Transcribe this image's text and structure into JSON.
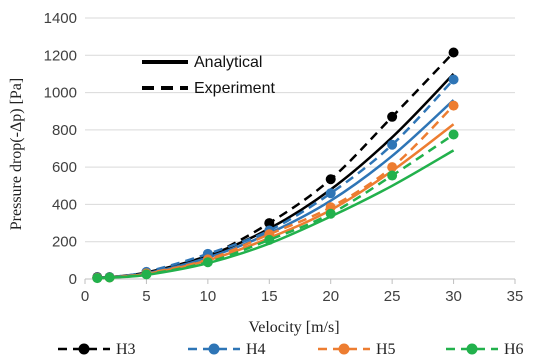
{
  "chart_data": {
    "type": "scatter",
    "xlabel": "Velocity [m/s]",
    "ylabel": "Pressure drop(-Δp) [Pa]",
    "xlim": [
      0,
      35
    ],
    "ylim": [
      0,
      1400
    ],
    "xticks": [
      0,
      5,
      10,
      15,
      20,
      25,
      30,
      35
    ],
    "yticks": [
      0,
      200,
      400,
      600,
      800,
      1000,
      1200,
      1400
    ],
    "grid": "horizontal",
    "style_legend": {
      "placement": "top-left",
      "entries": [
        {
          "label": "Analytical",
          "line": "solid"
        },
        {
          "label": "Experiment",
          "line": "dashed"
        }
      ]
    },
    "series_legend_placement": "bottom",
    "series": [
      {
        "name": "H3",
        "color": "#000000",
        "experiment": {
          "x": [
            1,
            2,
            5,
            10,
            15,
            20,
            25,
            30
          ],
          "y": [
            10,
            10,
            35,
            125,
            300,
            535,
            870,
            1215
          ]
        },
        "analytical": {
          "x": [
            1,
            2,
            5,
            10,
            15,
            20,
            25,
            30
          ],
          "y": [
            5,
            10,
            35,
            125,
            270,
            480,
            760,
            1100
          ]
        }
      },
      {
        "name": "H4",
        "color": "#2E75B6",
        "experiment": {
          "x": [
            1,
            2,
            5,
            10,
            15,
            20,
            25,
            30
          ],
          "y": [
            8,
            10,
            38,
            135,
            260,
            460,
            720,
            1070
          ]
        },
        "analytical": {
          "x": [
            1,
            2,
            5,
            10,
            15,
            20,
            25,
            30
          ],
          "y": [
            5,
            10,
            30,
            115,
            245,
            420,
            660,
            960
          ]
        }
      },
      {
        "name": "H5",
        "color": "#ED7D31",
        "experiment": {
          "x": [
            1,
            2,
            5,
            10,
            15,
            20,
            25,
            30
          ],
          "y": [
            6,
            8,
            30,
            105,
            240,
            385,
            600,
            930
          ]
        },
        "analytical": {
          "x": [
            1,
            2,
            5,
            10,
            15,
            20,
            25,
            30
          ],
          "y": [
            4,
            9,
            27,
            100,
            220,
            370,
            580,
            830
          ]
        }
      },
      {
        "name": "H6",
        "color": "#22B14C",
        "experiment": {
          "x": [
            1,
            2,
            5,
            10,
            15,
            20,
            25,
            30
          ],
          "y": [
            5,
            8,
            25,
            90,
            210,
            350,
            555,
            775
          ]
        },
        "analytical": {
          "x": [
            1,
            2,
            5,
            10,
            15,
            20,
            25,
            30
          ],
          "y": [
            3,
            7,
            22,
            85,
            190,
            335,
            500,
            690
          ]
        }
      }
    ]
  }
}
